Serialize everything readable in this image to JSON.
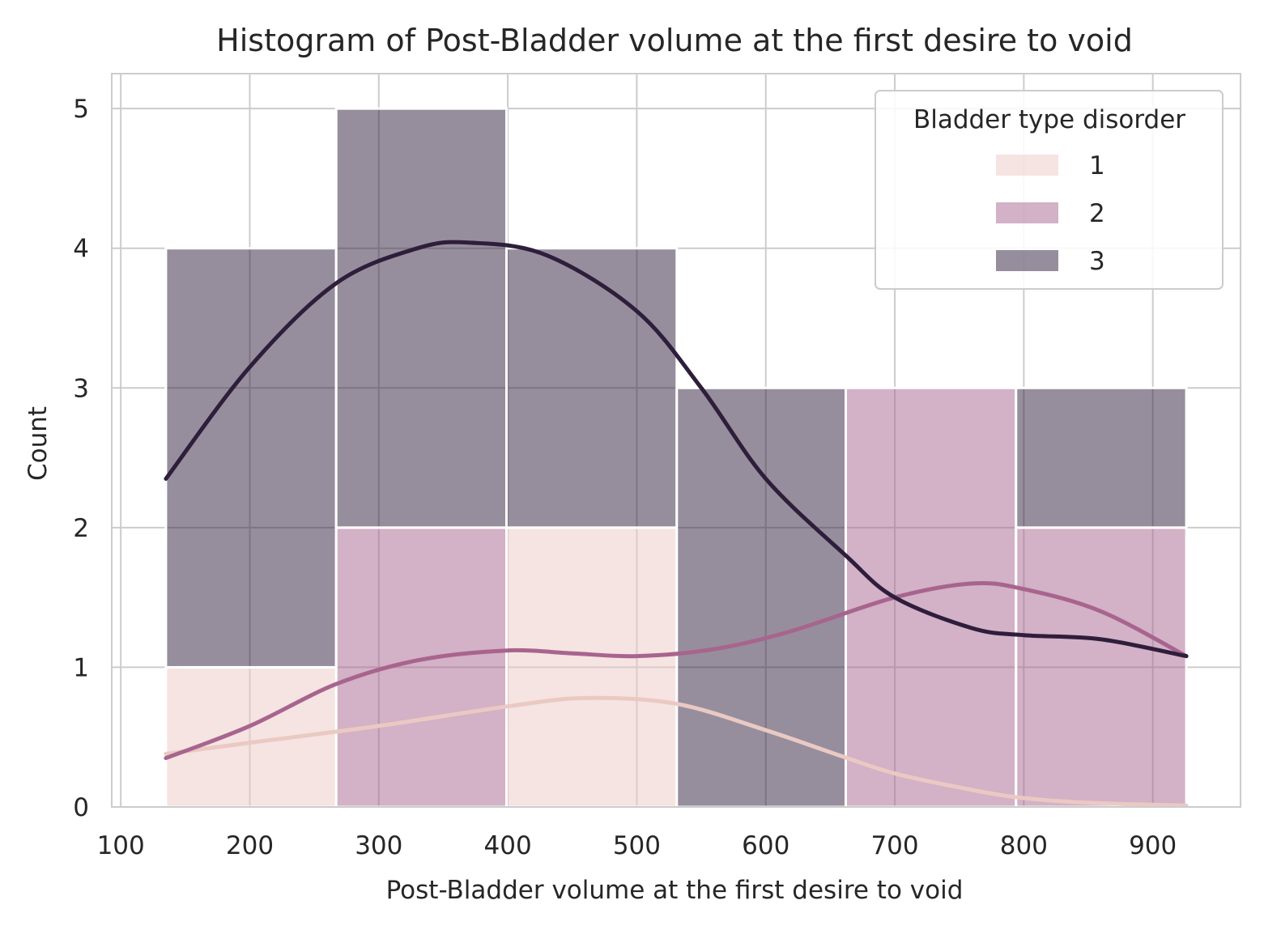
{
  "chart_data": {
    "type": "bar",
    "title": "Histogram of Post-Bladder volume at the first desire to void",
    "xlabel": "Post-Bladder volume at the first desire to void",
    "ylabel": "Count",
    "xlim": [
      93,
      968
    ],
    "ylim": [
      0,
      5.25
    ],
    "xticks": [
      100,
      200,
      300,
      400,
      500,
      600,
      700,
      800,
      900
    ],
    "yticks": [
      0,
      1,
      2,
      3,
      4,
      5
    ],
    "grid": true,
    "bin_edges": [
      135,
      267,
      399,
      531,
      662,
      794,
      926
    ],
    "legend": {
      "title": "Bladder type disorder",
      "placement": "top-right"
    },
    "series": [
      {
        "name": "1",
        "color": "#ebc9c3",
        "counts": [
          1,
          0,
          2,
          0,
          0,
          0
        ],
        "kde_x": [
          135,
          200,
          300,
          400,
          460,
          530,
          600,
          660,
          700,
          750,
          794,
          850,
          926
        ],
        "kde_y": [
          0.38,
          0.46,
          0.58,
          0.72,
          0.78,
          0.74,
          0.55,
          0.36,
          0.24,
          0.14,
          0.07,
          0.03,
          0.01
        ]
      },
      {
        "name": "2",
        "color": "#a8648e",
        "counts": [
          0,
          2,
          0,
          0,
          3,
          2
        ],
        "kde_x": [
          135,
          200,
          267,
          330,
          399,
          450,
          500,
          560,
          620,
          700,
          760,
          800,
          860,
          926
        ],
        "kde_y": [
          0.35,
          0.58,
          0.88,
          1.05,
          1.12,
          1.1,
          1.08,
          1.13,
          1.26,
          1.5,
          1.6,
          1.56,
          1.4,
          1.08
        ]
      },
      {
        "name": "3",
        "color": "#2e1e3b",
        "counts": [
          3,
          3,
          2,
          3,
          0,
          1
        ],
        "kde_x": [
          135,
          200,
          267,
          330,
          370,
          430,
          500,
          550,
          600,
          662,
          700,
          760,
          800,
          860,
          926
        ],
        "kde_y": [
          2.35,
          3.15,
          3.75,
          4.0,
          4.04,
          3.95,
          3.55,
          3.0,
          2.35,
          1.8,
          1.5,
          1.28,
          1.23,
          1.2,
          1.08
        ]
      }
    ]
  }
}
